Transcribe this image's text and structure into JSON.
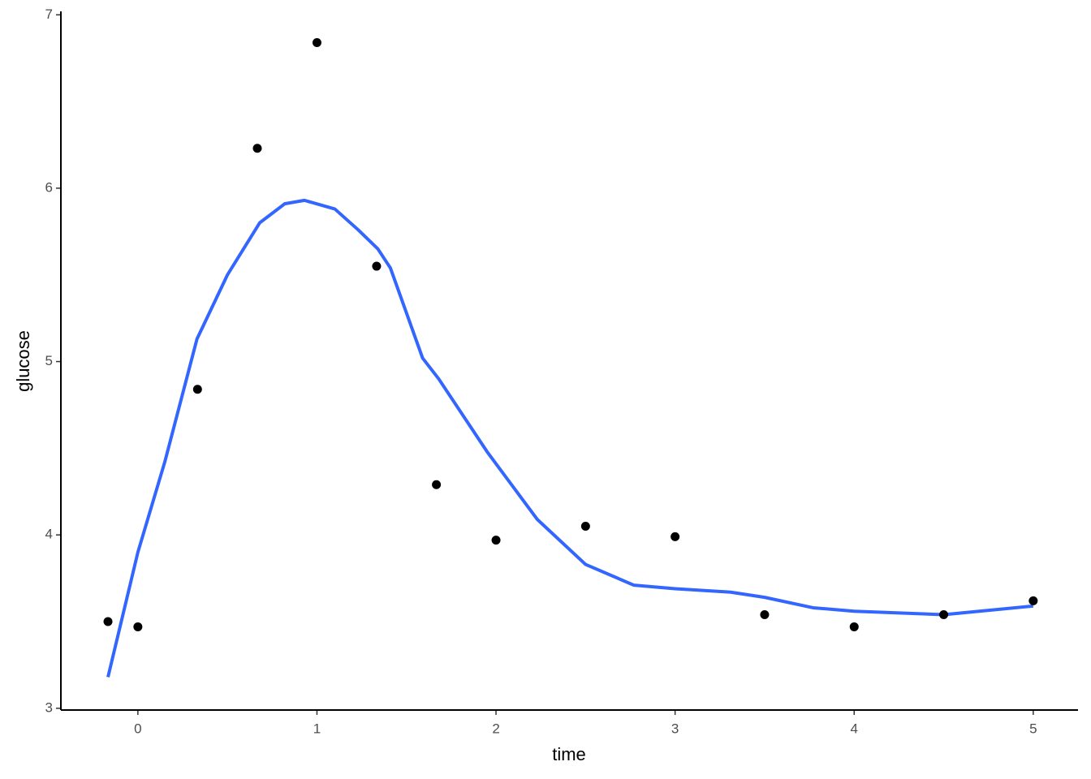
{
  "chart_data": {
    "type": "scatter",
    "x_label": "time",
    "y_label": "glucose",
    "xlim": [
      -0.43,
      5.25
    ],
    "ylim": [
      2.99,
      7.02
    ],
    "xticks": [
      0,
      1,
      2,
      3,
      4,
      5
    ],
    "yticks": [
      3,
      4,
      5,
      6,
      7
    ],
    "grid": false,
    "points": {
      "color": "#000000",
      "x": [
        -0.167,
        0,
        0.333,
        0.667,
        1,
        1.333,
        1.667,
        2,
        2.5,
        3,
        3.5,
        4,
        4.5,
        5
      ],
      "values": [
        3.5,
        3.47,
        4.84,
        6.23,
        6.84,
        5.55,
        4.29,
        3.97,
        4.05,
        3.99,
        3.54,
        3.47,
        3.54,
        3.62
      ]
    },
    "smooth": {
      "color": "#3366ff",
      "x": [
        -0.167,
        0,
        0.15,
        0.33,
        0.5,
        0.68,
        0.82,
        0.93,
        1.1,
        1.23,
        1.34,
        1.41,
        1.59,
        1.68,
        1.95,
        2.23,
        2.5,
        2.77,
        3,
        3.31,
        3.5,
        3.77,
        4,
        4.5,
        5
      ],
      "values": [
        3.18,
        3.9,
        4.42,
        5.13,
        5.5,
        5.8,
        5.91,
        5.93,
        5.88,
        5.76,
        5.65,
        5.54,
        5.02,
        4.9,
        4.48,
        4.09,
        3.83,
        3.71,
        3.69,
        3.67,
        3.64,
        3.58,
        3.56,
        3.54,
        3.59
      ]
    }
  }
}
